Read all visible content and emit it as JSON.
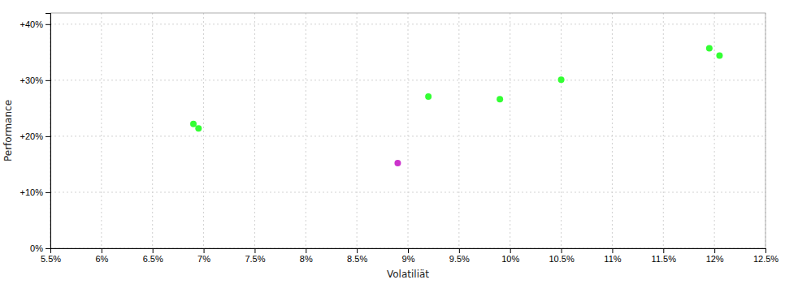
{
  "chart_data": {
    "type": "scatter",
    "xlabel": "Volatiliät",
    "ylabel": "Performance",
    "xlim": [
      0.055,
      0.125
    ],
    "ylim": [
      0.0,
      0.42
    ],
    "xticks": [
      {
        "value": 0.055,
        "label": "5.5%"
      },
      {
        "value": 0.06,
        "label": "6%"
      },
      {
        "value": 0.065,
        "label": "6.5%"
      },
      {
        "value": 0.07,
        "label": "7%"
      },
      {
        "value": 0.075,
        "label": "7.5%"
      },
      {
        "value": 0.08,
        "label": "8%"
      },
      {
        "value": 0.085,
        "label": "8.5%"
      },
      {
        "value": 0.09,
        "label": "9%"
      },
      {
        "value": 0.095,
        "label": "9.5%"
      },
      {
        "value": 0.1,
        "label": "10%"
      },
      {
        "value": 0.105,
        "label": "10.5%"
      },
      {
        "value": 0.11,
        "label": "11%"
      },
      {
        "value": 0.115,
        "label": "11.5%"
      },
      {
        "value": 0.12,
        "label": "12%"
      },
      {
        "value": 0.125,
        "label": "12.5%"
      }
    ],
    "yticks": [
      {
        "value": 0.0,
        "label": "0%"
      },
      {
        "value": 0.1,
        "label": "+10%"
      },
      {
        "value": 0.2,
        "label": "+20%"
      },
      {
        "value": 0.3,
        "label": "+30%"
      },
      {
        "value": 0.4,
        "label": "+40%"
      }
    ],
    "grid": true,
    "series": [
      {
        "color": "#33ff33",
        "x": [
          0.069,
          0.0695,
          0.092,
          0.099,
          0.105,
          0.1195,
          0.1205
        ],
        "values": [
          0.222,
          0.214,
          0.271,
          0.266,
          0.301,
          0.357,
          0.344
        ]
      },
      {
        "color": "#cc33cc",
        "x": [
          0.089
        ],
        "values": [
          0.152
        ]
      }
    ]
  }
}
